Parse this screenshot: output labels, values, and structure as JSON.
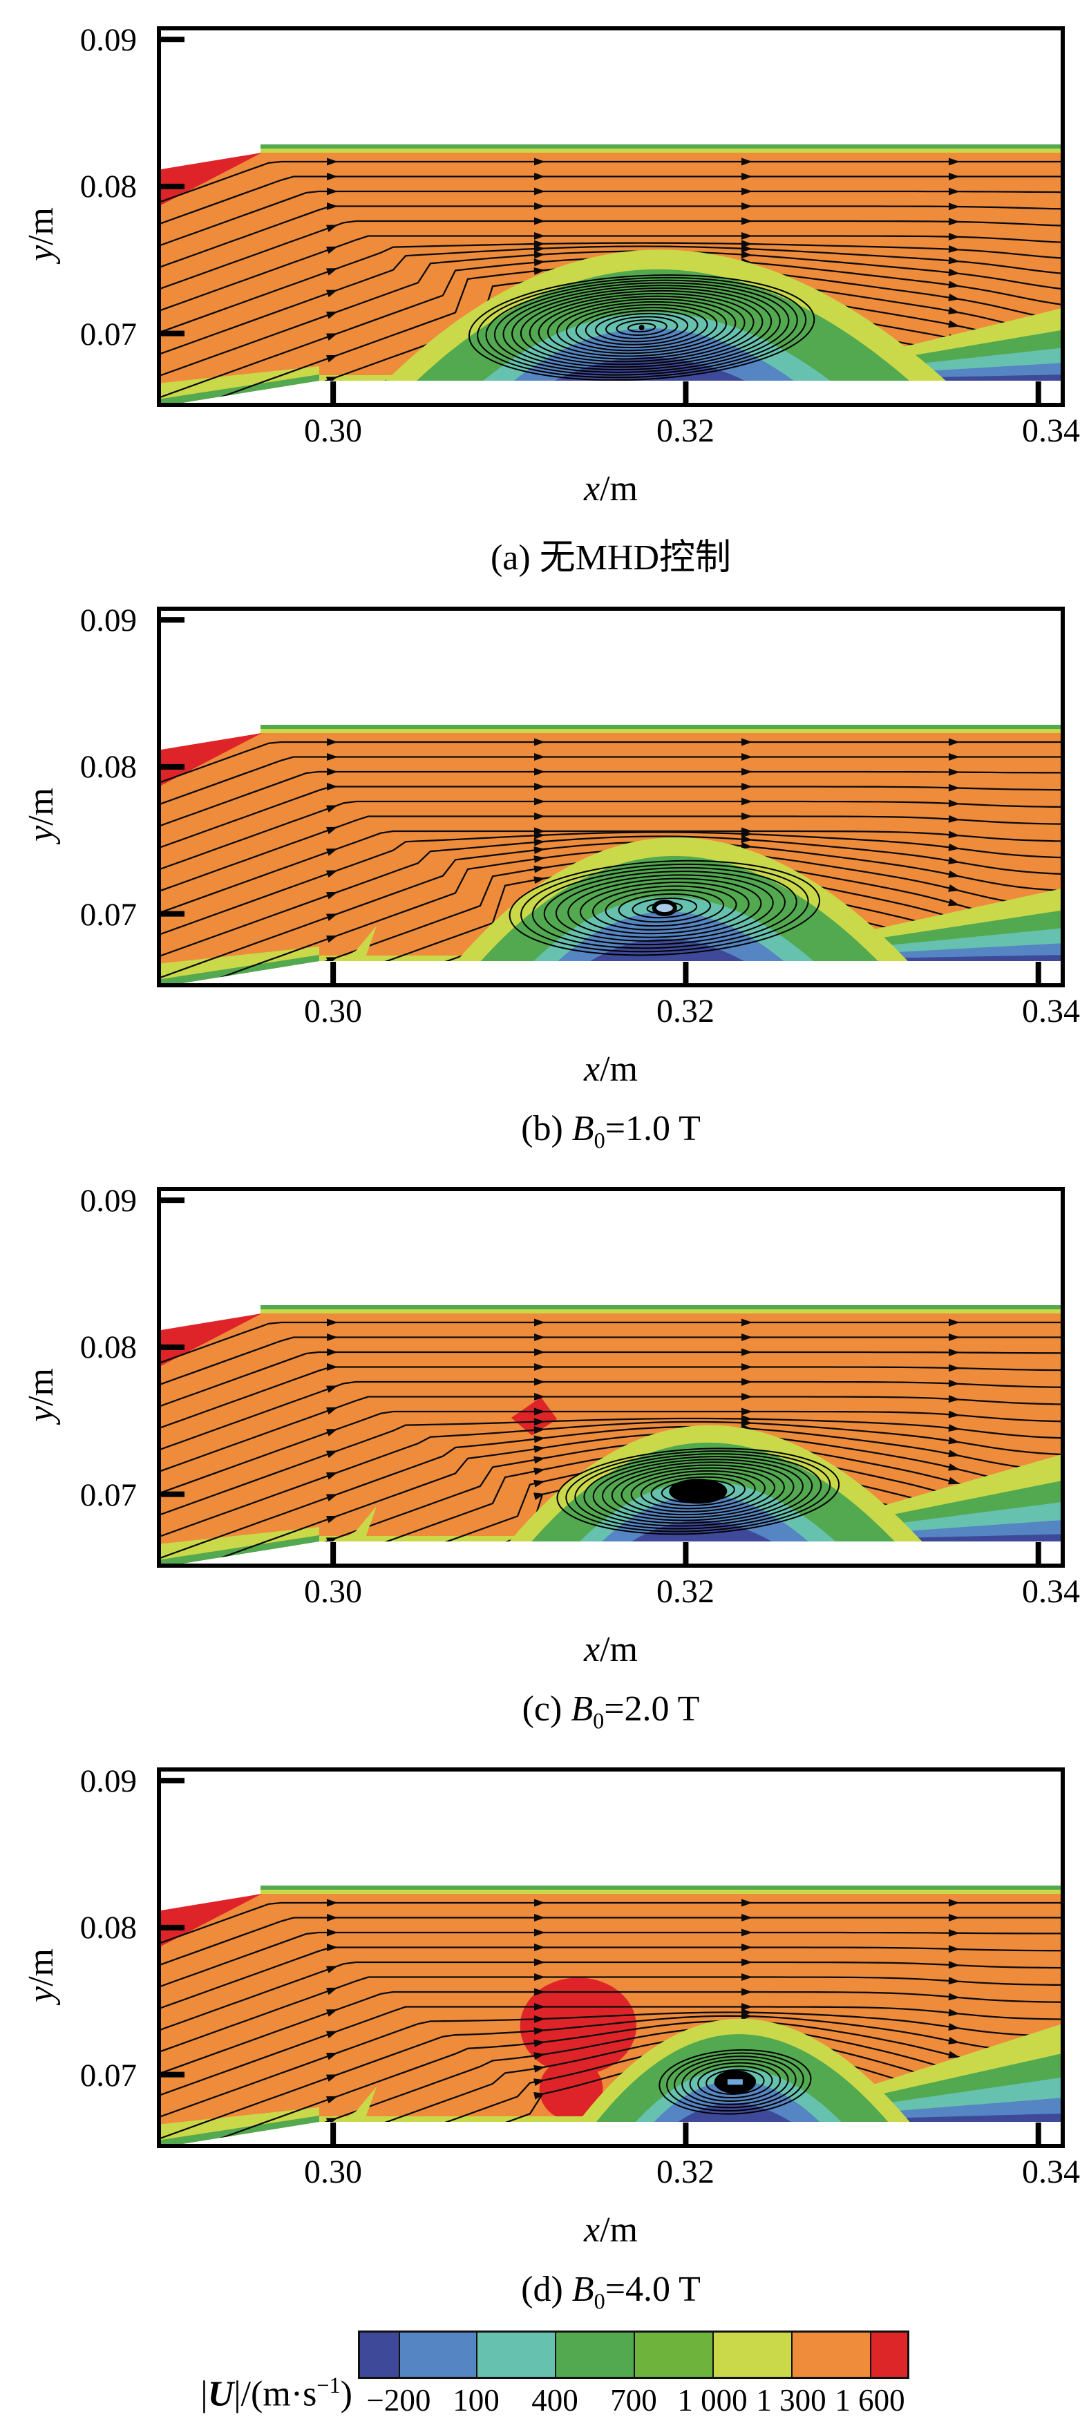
{
  "chart_data": {
    "type": "contour-streamline-multipanel",
    "figure_kind": "CFD velocity-magnitude contours with streamlines comparing MHD flow control cases",
    "axes": {
      "xlabel_var": "x",
      "xlabel_unit": "/m",
      "ylabel_var": "y",
      "ylabel_unit": "/m",
      "xrange": [
        0.29,
        0.3415
      ],
      "yrange": [
        0.065,
        0.0909
      ],
      "xticks": [
        0.3,
        0.32,
        0.34
      ],
      "xtick_labels": [
        "0.30",
        "0.32",
        "0.34"
      ],
      "yticks": [
        0.09,
        0.08,
        0.07
      ],
      "ytick_labels": [
        "0.09",
        "0.08",
        "0.07"
      ]
    },
    "colors": {
      "orange": "#ee8c3c",
      "red": "#df2429",
      "yellowgreen": "#cad94a",
      "green": "#52a94f",
      "green2": "#6db33c",
      "teal": "#66c2ae",
      "blue": "#5585c2",
      "navy": "#3e4a99",
      "stream": "#0a0a0a"
    },
    "colorbar": {
      "label_open": "|",
      "label_var": "U",
      "label_mid": "|/(m·s",
      "label_sup": "−1",
      "label_close": ")",
      "tick_labels": [
        "−200",
        "100",
        "400",
        "700",
        "1 000",
        "1 300",
        "1 600"
      ],
      "boundary_values": [
        -200,
        100,
        400,
        700,
        1000,
        1300,
        1600
      ],
      "segment_colors": [
        "#3e4a99",
        "#5585c2",
        "#66c2ae",
        "#52a94f",
        "#6db33c",
        "#cad94a",
        "#ee8c3c",
        "#dd2627"
      ],
      "segment_widths": [
        56,
        110,
        112,
        112,
        112,
        112,
        112,
        52
      ]
    },
    "panels": [
      {
        "index": "(a) ",
        "caption_var": "",
        "caption_sub": "",
        "caption_text": "无MHD控制",
        "caption_full": "(a) 无MHD控制",
        "b0_tesla": null,
        "bubble": {
          "cx": 0.3175,
          "left_halfwidth": 0.0145,
          "right_halfwidth": 0.01725,
          "top": 0.0757
        },
        "vortex": {
          "cx": 0.3175,
          "cy": 0.0704,
          "r": 0.0098,
          "rings": 18,
          "aspect": 0.3,
          "core": "dot"
        },
        "red_patches": [],
        "wake": 1.0,
        "spike": false
      },
      {
        "index": "(b) ",
        "caption_var": "B",
        "caption_sub": "0",
        "caption_text": "=1.0 T",
        "caption_full": "(b) B0=1.0 T",
        "b0_tesla": 1.0,
        "bubble": {
          "cx": 0.3185,
          "left_halfwidth": 0.0115,
          "right_halfwidth": 0.0141,
          "top": 0.0752
        },
        "vortex": {
          "cx": 0.3188,
          "cy": 0.0704,
          "r": 0.0088,
          "rings": 12,
          "aspect": 0.3,
          "core": "blue-dot"
        },
        "red_patches": [],
        "wake": 1.0,
        "spike": true
      },
      {
        "index": "(c) ",
        "caption_var": "B",
        "caption_sub": "0",
        "caption_text": "=2.0 T",
        "caption_full": "(c) B0=2.0 T",
        "b0_tesla": 2.0,
        "bubble": {
          "cx": 0.3205,
          "left_halfwidth": 0.0105,
          "right_halfwidth": 0.0129,
          "top": 0.0747
        },
        "vortex": {
          "cx": 0.3207,
          "cy": 0.0702,
          "r": 0.008,
          "rings": 14,
          "aspect": 0.3,
          "core": "black-blob"
        },
        "red_patches": [
          {
            "shape": "diamond",
            "x": 0.3114,
            "y": 0.0753,
            "r": 0.0013
          }
        ],
        "wake": 1.2,
        "spike": true
      },
      {
        "index": "(d) ",
        "caption_var": "B",
        "caption_sub": "0",
        "caption_text": "=4.0 T",
        "caption_full": "(d) B0=4.0 T",
        "b0_tesla": 4.0,
        "bubble": {
          "cx": 0.3225,
          "left_halfwidth": 0.0086,
          "right_halfwidth": 0.0102,
          "top": 0.0738
        },
        "vortex": {
          "cx": 0.3228,
          "cy": 0.0695,
          "r": 0.0043,
          "rings": 9,
          "aspect": 0.42,
          "core": "black-blob-blue"
        },
        "red_patches": [
          {
            "shape": "blob",
            "x": 0.3139,
            "y": 0.0733,
            "rx": 0.0033,
            "ry": 0.0033
          },
          {
            "shape": "blob",
            "x": 0.3135,
            "y": 0.069,
            "rx": 0.0018,
            "ry": 0.0021
          }
        ],
        "wake": 1.35,
        "spike": true
      }
    ]
  }
}
